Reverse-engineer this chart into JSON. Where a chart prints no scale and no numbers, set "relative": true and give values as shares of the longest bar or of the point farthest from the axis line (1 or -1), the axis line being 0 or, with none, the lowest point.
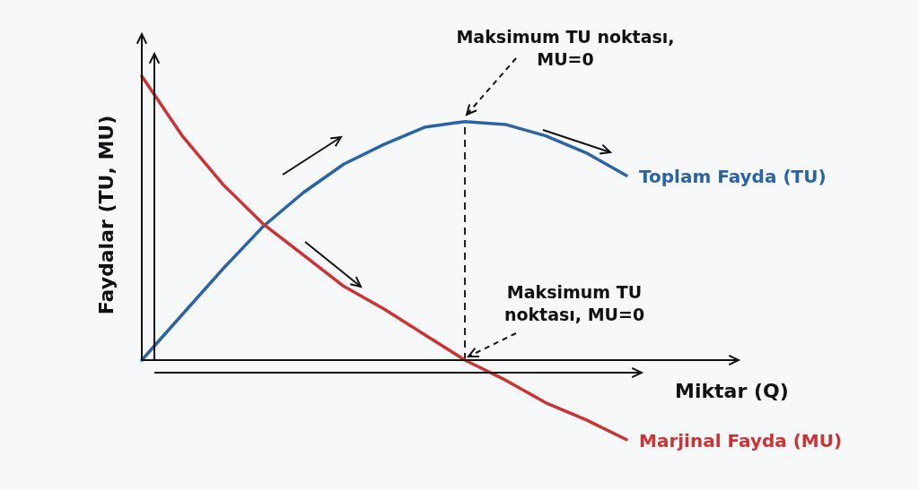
{
  "chart_data": {
    "type": "line",
    "relative": true,
    "xlabel": "Miktar (Q)",
    "ylabel": "Faydalar (TU, MU)",
    "categories": [
      null,
      null,
      null,
      null,
      null,
      null,
      null,
      null,
      null,
      null,
      null,
      null,
      null
    ],
    "series": [
      {
        "name": "Toplam Fayda (TU)",
        "color": "#2a64a4",
        "values": [
          0,
          0.16,
          0.32,
          0.47,
          0.59,
          0.69,
          0.76,
          0.82,
          0.84,
          0.83,
          0.79,
          0.73,
          0.65
        ]
      },
      {
        "name": "Marjinal Fayda (MU)",
        "color": "#cc3333",
        "values": [
          1,
          0.79,
          0.62,
          0.48,
          0.37,
          0.26,
          0.18,
          0.09,
          0,
          -0.07,
          -0.15,
          -0.21,
          -0.28
        ]
      }
    ],
    "annotations": [
      "Maksimum TU noktası,\nMU=0",
      "Maksimum TU\nnoktası, MU=0"
    ]
  }
}
